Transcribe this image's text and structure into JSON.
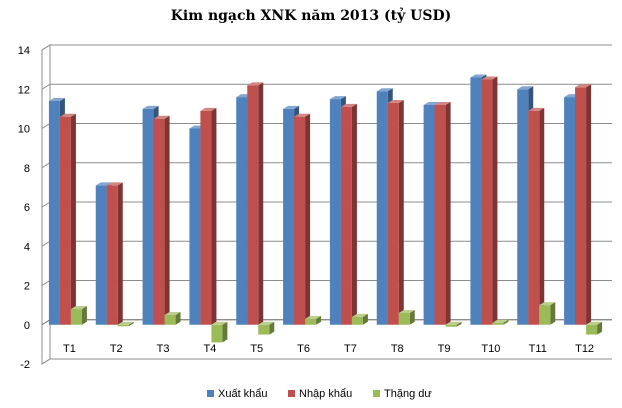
{
  "chart_data": {
    "type": "bar",
    "title": "Kim ngạch XNK năm 2013 (tỷ USD)",
    "categories": [
      "T1",
      "T2",
      "T3",
      "T4",
      "T5",
      "T6",
      "T7",
      "T8",
      "T9",
      "T10",
      "T11",
      "T12"
    ],
    "series": [
      {
        "name": "Xuất khẩu",
        "color": "#4f81bd",
        "values": [
          11.4,
          7.1,
          11.0,
          10.0,
          11.6,
          11.0,
          11.5,
          11.9,
          11.2,
          12.6,
          12.0,
          11.6
        ]
      },
      {
        "name": "Nhập khẩu",
        "color": "#c0504d",
        "values": [
          10.6,
          7.1,
          10.5,
          10.9,
          12.2,
          10.6,
          11.1,
          11.3,
          11.2,
          12.5,
          10.9,
          12.1
        ]
      },
      {
        "name": "Thặng dư",
        "color": "#9bbb59",
        "values": [
          0.8,
          0.0,
          0.5,
          -0.9,
          -0.5,
          0.3,
          0.4,
          0.6,
          -0.1,
          0.1,
          1.0,
          -0.5
        ]
      }
    ],
    "ylim": [
      -2,
      14
    ],
    "yticks": [
      "-2",
      "0",
      "2",
      "4",
      "6",
      "8",
      "10",
      "12",
      "14"
    ],
    "xlabel": "",
    "ylabel": "",
    "grid": true,
    "legend_position": "bottom"
  }
}
